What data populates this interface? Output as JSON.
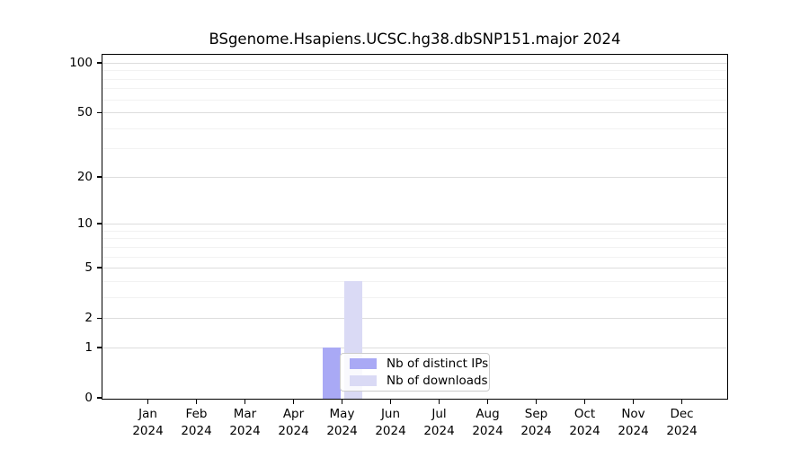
{
  "colors": {
    "distinct_ips_bar": "#a9a9f5",
    "downloads_bar": "#dadaf5",
    "grid_major": "#dddddd",
    "grid_minor": "#f2f2f2",
    "axis": "#000000",
    "text": "#000000",
    "legend_border": "#cccccc"
  },
  "chart_data": {
    "type": "bar",
    "title": "BSgenome.Hsapiens.UCSC.hg38.dbSNP151.major 2024",
    "xlabel": "",
    "ylabel": "",
    "year": "2024",
    "categories": [
      "Jan",
      "Feb",
      "Mar",
      "Apr",
      "May",
      "Jun",
      "Jul",
      "Aug",
      "Sep",
      "Oct",
      "Nov",
      "Dec"
    ],
    "series": [
      {
        "name": "Nb of distinct IPs",
        "color": "#a9a9f5",
        "values": [
          0,
          0,
          0,
          0,
          1,
          0,
          0,
          0,
          0,
          0,
          0,
          0
        ]
      },
      {
        "name": "Nb of downloads",
        "color": "#dadaf5",
        "values": [
          0,
          0,
          0,
          0,
          4,
          0,
          0,
          0,
          0,
          0,
          0,
          0
        ]
      }
    ],
    "y_scale": "log1p",
    "ylim": [
      0,
      100
    ],
    "y_ticks": [
      0,
      1,
      2,
      5,
      10,
      20,
      50,
      100
    ],
    "y_minor_gridlines": [
      3,
      4,
      6,
      7,
      8,
      9,
      30,
      40,
      60,
      70,
      80,
      90
    ],
    "grid": "on",
    "legend_position": "lower-center-inside"
  }
}
